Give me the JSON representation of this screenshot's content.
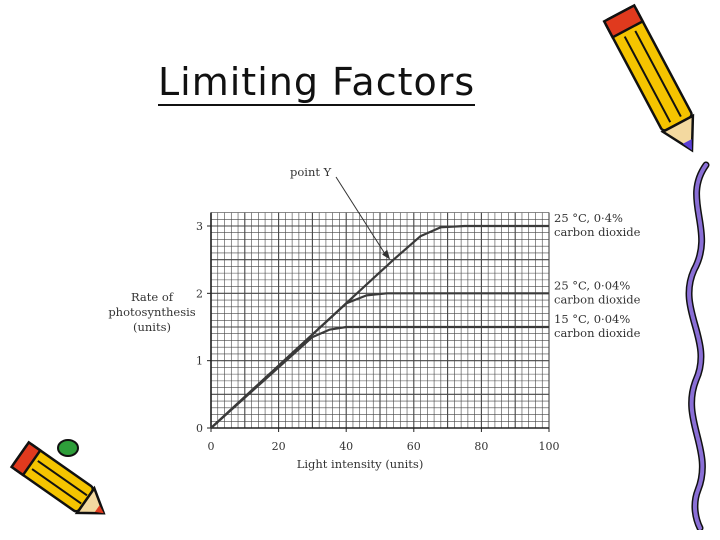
{
  "slide": {
    "title": "Limiting Factors"
  },
  "icons": {
    "top_right": "pencil-icon",
    "right_edge": "squiggle-icon",
    "bottom_left": "pencil-icon"
  },
  "colors": {
    "curve": "#3a3a3a",
    "grid": "#444444",
    "pencil_body": "#f5c400",
    "pencil_tip": "#e03a1e",
    "squiggle": "#8a6fd6"
  },
  "chart_data": {
    "type": "line",
    "xlabel": "Light intensity (units)",
    "ylabel": [
      "Rate of",
      "photosynthesis",
      "(units)"
    ],
    "xlim": [
      0,
      100
    ],
    "ylim": [
      0,
      3.2
    ],
    "xticks": [
      0,
      20,
      40,
      60,
      80,
      100
    ],
    "yticks": [
      0,
      1,
      2,
      3
    ],
    "grid": true,
    "annotation": {
      "text": "point Y",
      "x": 53,
      "y": 2.5
    },
    "series": [
      {
        "name": [
          "25 °C, 0·4%",
          "carbon dioxide"
        ],
        "points": [
          [
            0,
            0
          ],
          [
            54,
            2.5
          ],
          [
            62,
            2.85
          ],
          [
            68,
            2.98
          ],
          [
            75,
            3.0
          ],
          [
            100,
            3.0
          ]
        ]
      },
      {
        "name": [
          "25 °C, 0·04%",
          "carbon dioxide"
        ],
        "points": [
          [
            0,
            0
          ],
          [
            40,
            1.85
          ],
          [
            46,
            1.97
          ],
          [
            52,
            2.0
          ],
          [
            100,
            2.0
          ]
        ]
      },
      {
        "name": [
          "15 °C, 0·04%",
          "carbon dioxide"
        ],
        "points": [
          [
            0,
            0
          ],
          [
            30,
            1.35
          ],
          [
            35,
            1.46
          ],
          [
            40,
            1.5
          ],
          [
            100,
            1.5
          ]
        ]
      }
    ]
  }
}
